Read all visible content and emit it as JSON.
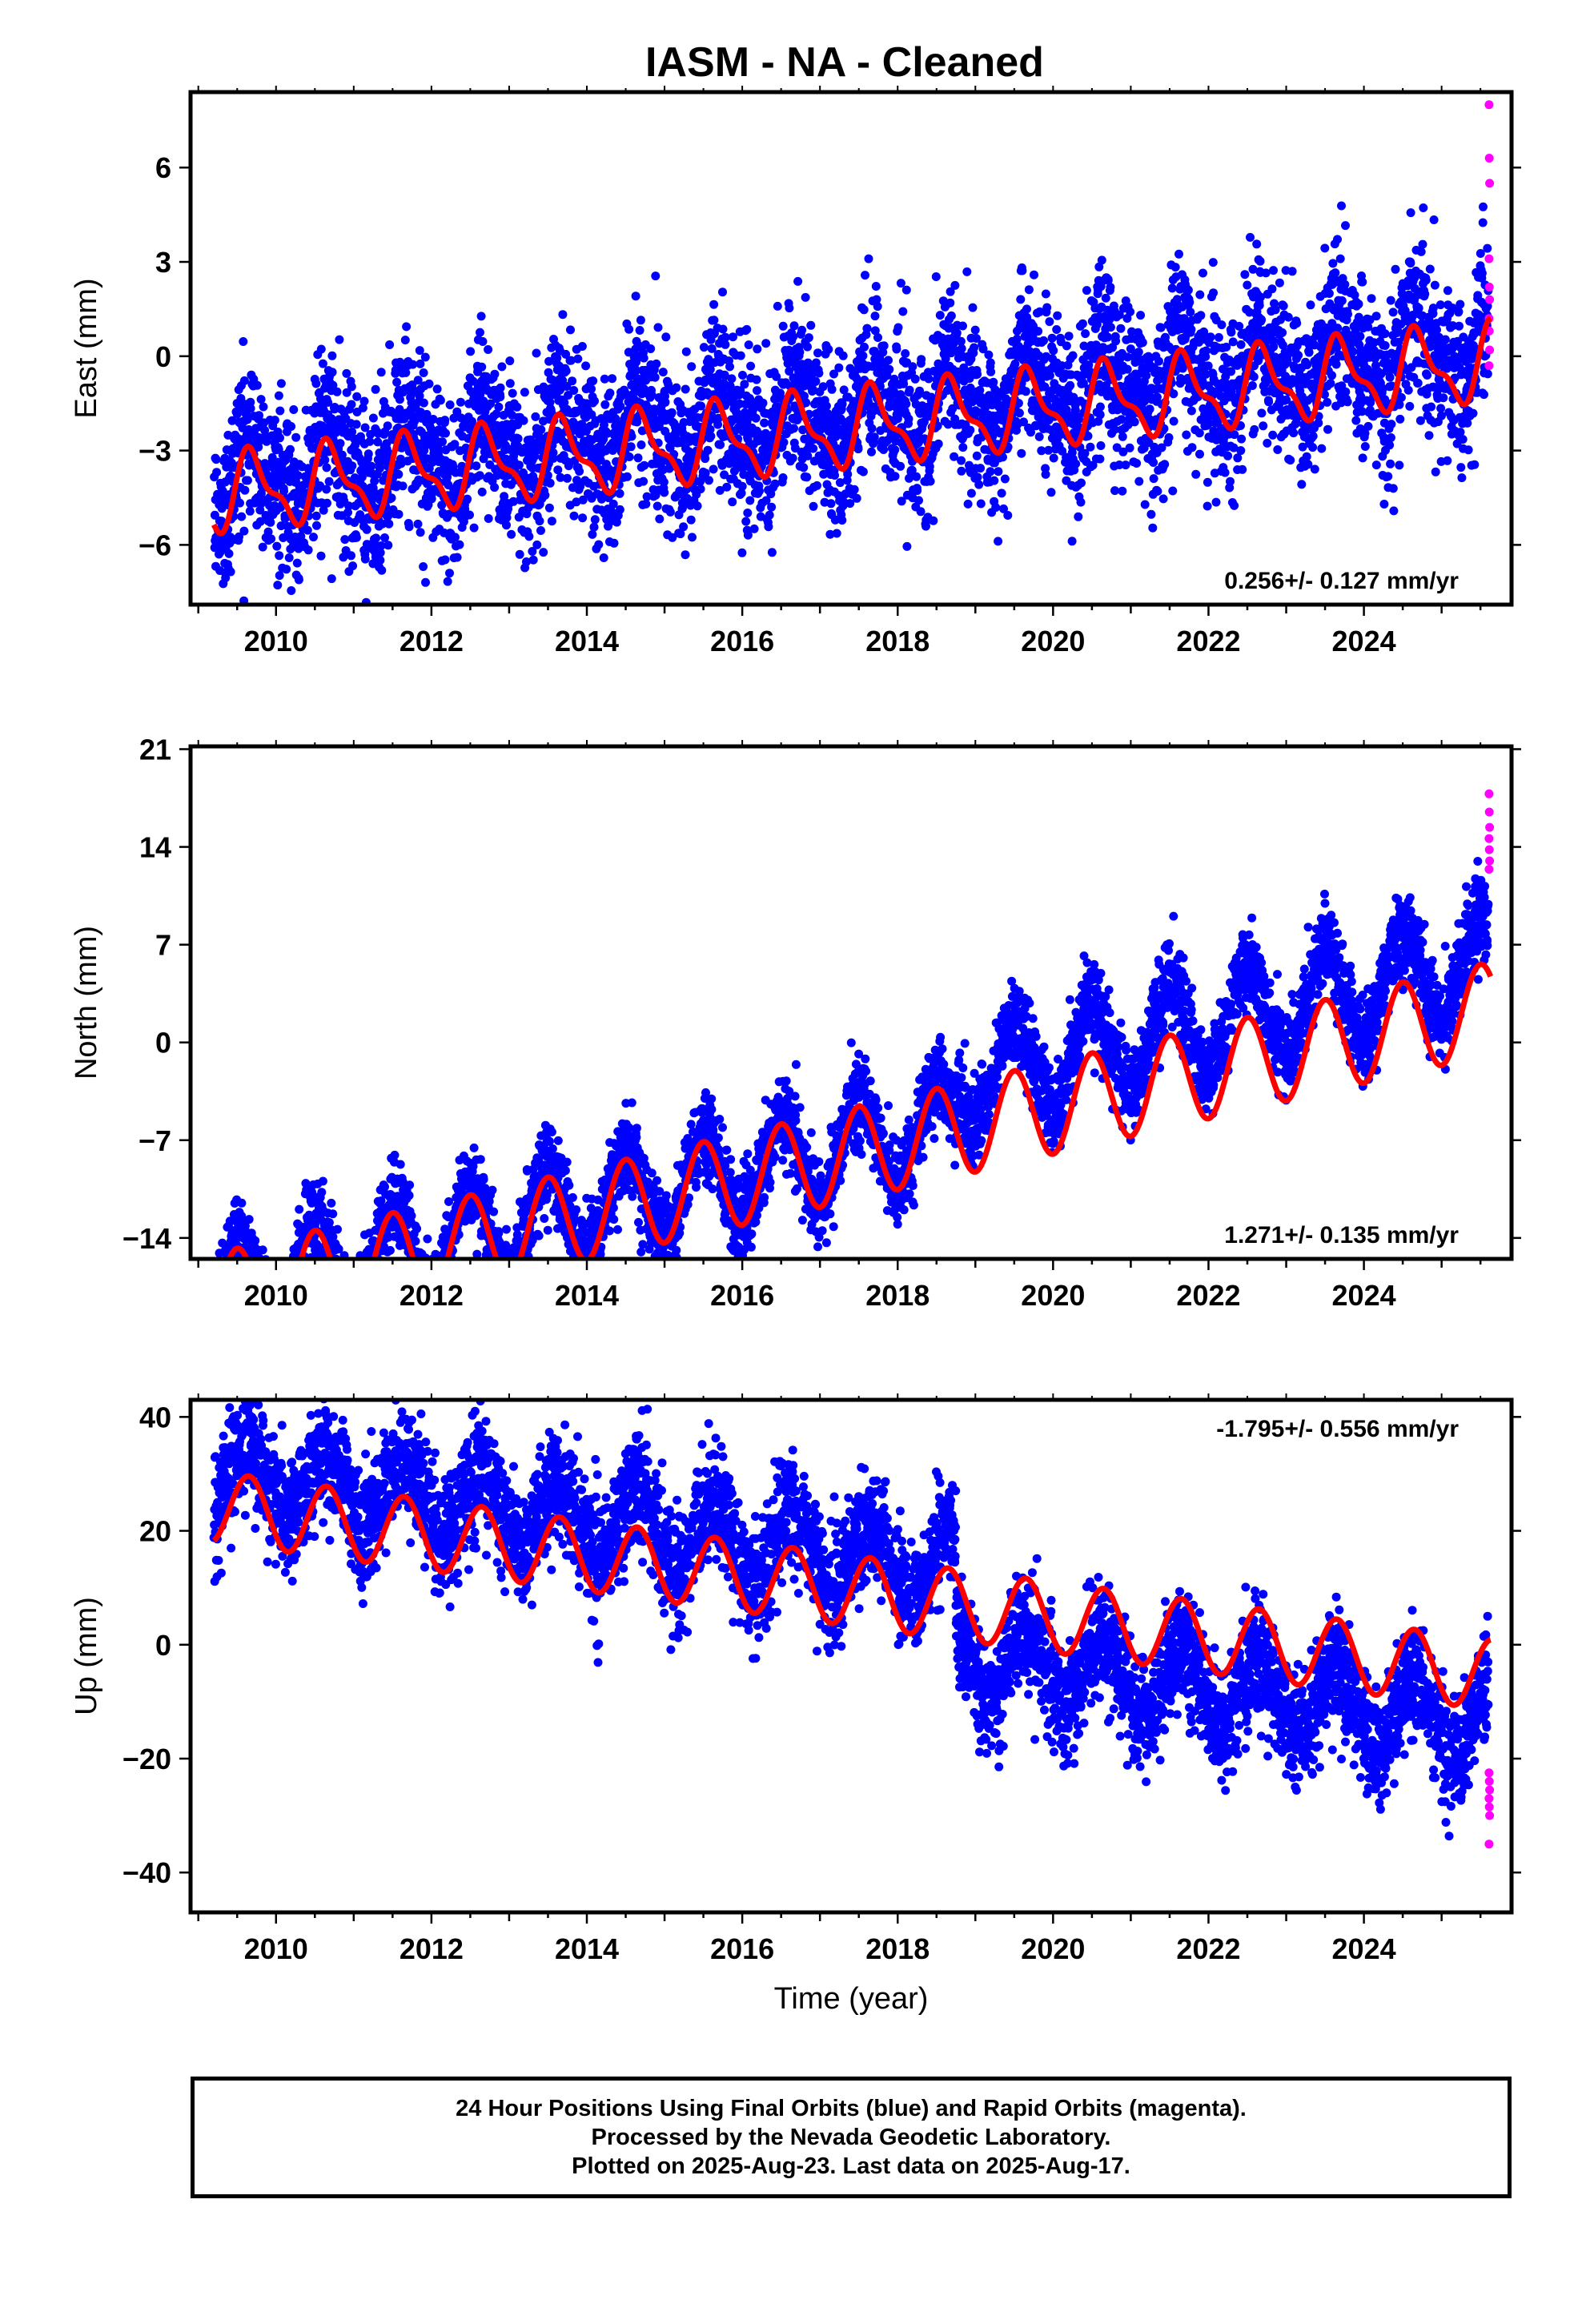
{
  "title": "IASM  - NA - Cleaned",
  "colors": {
    "final": "#0000ff",
    "rapid": "#ff00ff",
    "model": "#ff0000",
    "frame": "#000000"
  },
  "chart_data": [
    {
      "type": "scatter",
      "name": "east",
      "ylabel": "East (mm)",
      "xlabel": "",
      "xlim": [
        2008.9,
        2025.9
      ],
      "ylim": [
        -7.9,
        8.4
      ],
      "yticks": [
        -6,
        -3,
        0,
        3,
        6
      ],
      "xticks": [
        2010,
        2012,
        2014,
        2016,
        2018,
        2020,
        2022,
        2024
      ],
      "velocity": "0.256+/- 0.127 mm/yr",
      "velocity_position": "bottom-right",
      "start_year": 2009.2,
      "end_year": 2025.63,
      "model": {
        "description": "red fitted curve (trend + annual/semiannual + offsets)",
        "offset": -2.3,
        "rate": 0.256,
        "annual_amp": 1.1,
        "annual_peak": 0.7,
        "semiannual_amp": 0.45,
        "semiannual_peak": 0.6,
        "steps": [
          {
            "year": 2018.75,
            "value": 0.0
          }
        ]
      },
      "residual_offset": [
        {
          "from": 2009.2,
          "to": 2025.63,
          "value": 0.5
        }
      ],
      "scatter_sd": 1.3,
      "rapid_values": [
        8.0,
        6.3,
        5.5,
        3.1,
        2.2,
        1.8,
        1.2,
        0.8,
        0.2,
        -0.3
      ]
    },
    {
      "type": "scatter",
      "name": "north",
      "ylabel": "North (mm)",
      "xlabel": "",
      "xlim": [
        2008.9,
        2025.9
      ],
      "ylim": [
        -15.5,
        21.2
      ],
      "yticks": [
        -14,
        -7,
        0,
        7,
        14,
        21
      ],
      "xticks": [
        2010,
        2012,
        2014,
        2016,
        2018,
        2020,
        2022,
        2024
      ],
      "velocity": "1.271+/- 0.135 mm/yr",
      "velocity_position": "bottom-right",
      "start_year": 2009.2,
      "end_year": 2025.63,
      "model": {
        "description": "red fitted curve",
        "offset": -8.0,
        "rate": 1.271,
        "annual_amp": 3.3,
        "annual_peak": 0.5,
        "semiannual_amp": 0.0,
        "semiannual_peak": 0.0,
        "steps": [
          {
            "year": 2018.75,
            "value": 0.0
          }
        ]
      },
      "residual_offset": [
        {
          "from": 2009.2,
          "to": 2018.75,
          "value": 0.5
        },
        {
          "from": 2018.75,
          "to": 2025.63,
          "value": 3.5
        }
      ],
      "scatter_sd": 1.5,
      "rapid_values": [
        17.8,
        16.5,
        15.4,
        14.6,
        13.8,
        13.0,
        12.4
      ]
    },
    {
      "type": "scatter",
      "name": "up",
      "ylabel": "Up (mm)",
      "xlabel": "Time (year)",
      "xlim": [
        2008.9,
        2025.9
      ],
      "ylim": [
        -47,
        43
      ],
      "yticks": [
        -40,
        -20,
        0,
        20,
        40
      ],
      "xticks": [
        2010,
        2012,
        2014,
        2016,
        2018,
        2020,
        2022,
        2024
      ],
      "velocity": "-1.795+/- 0.556 mm/yr",
      "velocity_position": "top-right",
      "start_year": 2009.2,
      "end_year": 2025.63,
      "model": {
        "description": "red fitted curve",
        "offset": 9.5,
        "rate": -1.795,
        "annual_amp": 6.2,
        "annual_peak": 0.65,
        "semiannual_amp": 0.0,
        "semiannual_peak": 0.0,
        "steps": [
          {
            "year": 2018.75,
            "value": 0.0
          }
        ]
      },
      "residual_offset": [
        {
          "from": 2009.2,
          "to": 2018.75,
          "value": 6.0
        },
        {
          "from": 2018.75,
          "to": 2025.63,
          "value": -9.0
        }
      ],
      "scatter_sd": 5.0,
      "rapid_values": [
        -22.5,
        -24.0,
        -25.5,
        -27.0,
        -28.5,
        -30.0,
        -35.0
      ]
    }
  ],
  "footer": {
    "line1": "24 Hour Positions Using Final Orbits (blue) and Rapid Orbits (magenta).",
    "line2": "Processed by the Nevada Geodetic Laboratory.",
    "line3": "Plotted on 2025-Aug-23. Last data on 2025-Aug-17."
  }
}
